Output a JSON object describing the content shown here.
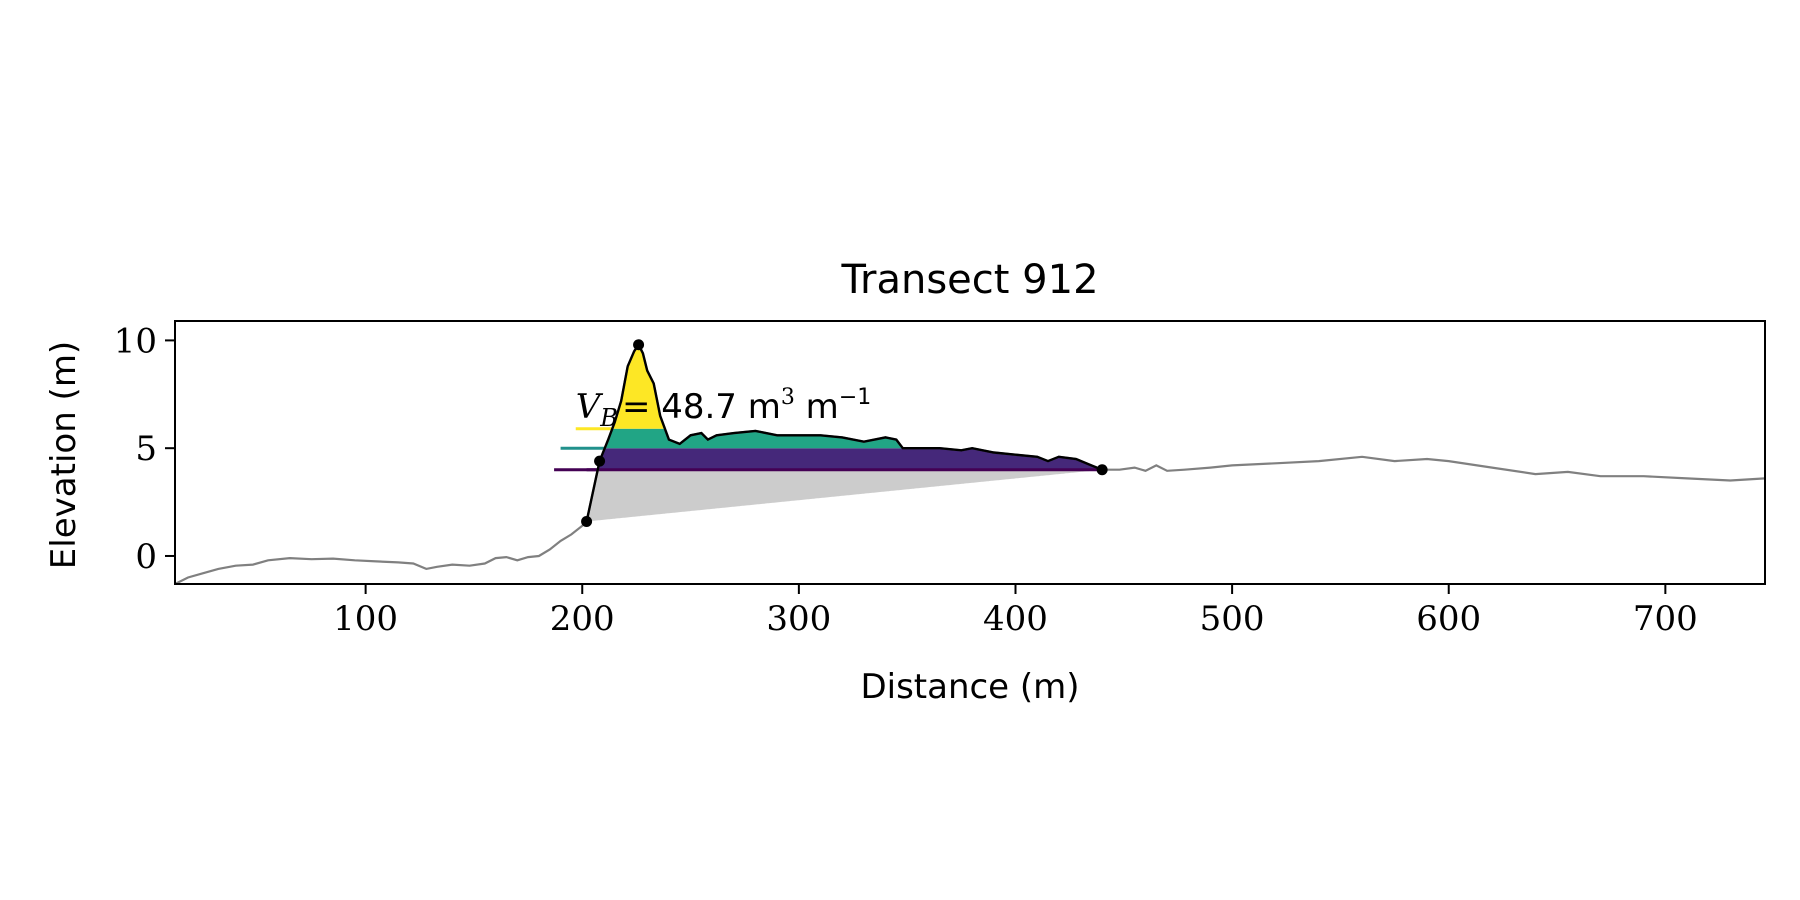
{
  "chart_data": {
    "type": "area",
    "title": "Transect 912",
    "xlabel": "Distance (m)",
    "ylabel": "Elevation (m)",
    "xlim": [
      12,
      746
    ],
    "ylim": [
      -1.3,
      10.9
    ],
    "xticks": [
      100,
      200,
      300,
      400,
      500,
      600,
      700
    ],
    "yticks": [
      0,
      5,
      10
    ],
    "grid": false,
    "annotation": {
      "symbol": "V",
      "subscript": "B",
      "equals": "= 48.7 m",
      "unit_exp": "3",
      "per": " m",
      "per_exp": "−1",
      "anchor": [
        197,
        6.4
      ]
    },
    "levels": [
      {
        "y": 5.9,
        "x_start": 197,
        "color": "#fde725"
      },
      {
        "y": 5.0,
        "x_start": 190,
        "color": "#21918c"
      },
      {
        "y": 4.0,
        "x_start": 187,
        "color": "#440154"
      }
    ],
    "fill_colors": {
      "top": "#fde725",
      "upper": "#21a585",
      "middle": "#45287a",
      "base": "#cccccc"
    },
    "key_points": [
      {
        "x": 202,
        "y": 1.6
      },
      {
        "x": 208,
        "y": 4.4
      },
      {
        "x": 226,
        "y": 9.8
      },
      {
        "x": 440,
        "y": 4.0
      }
    ],
    "profile": [
      [
        12,
        -1.3
      ],
      [
        18,
        -1.0
      ],
      [
        25,
        -0.8
      ],
      [
        32,
        -0.6
      ],
      [
        40,
        -0.45
      ],
      [
        48,
        -0.4
      ],
      [
        55,
        -0.2
      ],
      [
        65,
        -0.1
      ],
      [
        75,
        -0.15
      ],
      [
        85,
        -0.12
      ],
      [
        95,
        -0.2
      ],
      [
        105,
        -0.25
      ],
      [
        115,
        -0.3
      ],
      [
        122,
        -0.35
      ],
      [
        128,
        -0.6
      ],
      [
        133,
        -0.5
      ],
      [
        140,
        -0.4
      ],
      [
        148,
        -0.45
      ],
      [
        155,
        -0.35
      ],
      [
        160,
        -0.1
      ],
      [
        165,
        -0.05
      ],
      [
        170,
        -0.2
      ],
      [
        175,
        -0.05
      ],
      [
        180,
        0.0
      ],
      [
        185,
        0.3
      ],
      [
        190,
        0.7
      ],
      [
        195,
        1.0
      ],
      [
        200,
        1.4
      ],
      [
        202,
        1.6
      ],
      [
        205,
        3.0
      ],
      [
        208,
        4.4
      ],
      [
        212,
        5.4
      ],
      [
        215,
        6.2
      ],
      [
        218,
        7.2
      ],
      [
        221,
        8.8
      ],
      [
        224,
        9.5
      ],
      [
        226,
        9.8
      ],
      [
        228,
        9.4
      ],
      [
        230,
        8.6
      ],
      [
        233,
        8.0
      ],
      [
        236,
        6.5
      ],
      [
        240,
        5.4
      ],
      [
        245,
        5.2
      ],
      [
        250,
        5.6
      ],
      [
        255,
        5.7
      ],
      [
        258,
        5.4
      ],
      [
        262,
        5.6
      ],
      [
        270,
        5.7
      ],
      [
        280,
        5.8
      ],
      [
        290,
        5.6
      ],
      [
        300,
        5.6
      ],
      [
        310,
        5.6
      ],
      [
        320,
        5.5
      ],
      [
        330,
        5.3
      ],
      [
        340,
        5.5
      ],
      [
        345,
        5.4
      ],
      [
        348,
        5.0
      ],
      [
        355,
        5.0
      ],
      [
        365,
        5.0
      ],
      [
        375,
        4.9
      ],
      [
        380,
        5.0
      ],
      [
        390,
        4.8
      ],
      [
        400,
        4.7
      ],
      [
        410,
        4.6
      ],
      [
        415,
        4.4
      ],
      [
        420,
        4.6
      ],
      [
        428,
        4.5
      ],
      [
        435,
        4.2
      ],
      [
        440,
        4.0
      ],
      [
        448,
        4.0
      ],
      [
        455,
        4.1
      ],
      [
        460,
        3.95
      ],
      [
        465,
        4.2
      ],
      [
        470,
        3.95
      ],
      [
        478,
        4.0
      ],
      [
        490,
        4.1
      ],
      [
        500,
        4.2
      ],
      [
        520,
        4.3
      ],
      [
        540,
        4.4
      ],
      [
        560,
        4.6
      ],
      [
        575,
        4.4
      ],
      [
        590,
        4.5
      ],
      [
        600,
        4.4
      ],
      [
        620,
        4.1
      ],
      [
        640,
        3.8
      ],
      [
        655,
        3.9
      ],
      [
        670,
        3.7
      ],
      [
        690,
        3.7
      ],
      [
        710,
        3.6
      ],
      [
        730,
        3.5
      ],
      [
        746,
        3.6
      ]
    ]
  }
}
